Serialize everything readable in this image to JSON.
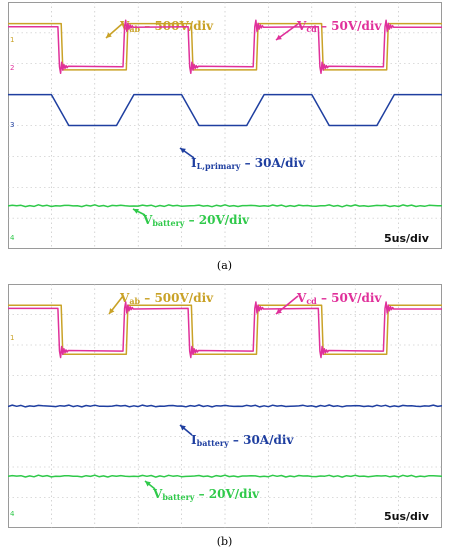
{
  "colors": {
    "vab": "#c9a227",
    "vcd": "#e0309a",
    "current": "#1f3fa0",
    "battery": "#2fc94a",
    "grid": "#b8b8b8",
    "scale_text": "#111111"
  },
  "chart_data": [
    {
      "type": "line",
      "panel_caption": "(a)",
      "time_scale": "5us/div",
      "grid": true,
      "channel_markers": [
        "1",
        "2",
        "3",
        "4"
      ],
      "period_us": 12,
      "x_range_us": [
        0,
        40
      ],
      "series": [
        {
          "name_main": "V",
          "name_sub": "ab",
          "scale": " – 500V/div",
          "waveform": "square",
          "high_div": 7.3,
          "low_div": 5.8
        },
        {
          "name_main": "V",
          "name_sub": "cd",
          "scale": " – 50V/div",
          "waveform": "square",
          "high_div": 7.2,
          "low_div": 5.9
        },
        {
          "name_main": "I",
          "name_sub": "L,primary",
          "scale": " – 30A/div",
          "waveform": "trapezoid",
          "high_div": 5.0,
          "low_div": 4.0
        },
        {
          "name_main": "V",
          "name_sub": "battery",
          "scale": " –  20V/div",
          "waveform": "dc",
          "level_div": 1.4
        }
      ]
    },
    {
      "type": "line",
      "panel_caption": "(b)",
      "time_scale": "5us/div",
      "grid": true,
      "channel_markers": [
        "1",
        "4"
      ],
      "period_us": 12,
      "x_range_us": [
        0,
        40
      ],
      "series": [
        {
          "name_main": "V",
          "name_sub": "ab",
          "scale": " – 500V/div",
          "waveform": "square",
          "high_div": 7.3,
          "low_div": 5.7
        },
        {
          "name_main": "V",
          "name_sub": "cd",
          "scale": " – 50V/div",
          "waveform": "square",
          "high_div": 7.2,
          "low_div": 5.8
        },
        {
          "name_main": "I",
          "name_sub": "battery",
          "scale": " – 30A/div",
          "waveform": "dc",
          "level_div": 4.0
        },
        {
          "name_main": "V",
          "name_sub": "battery",
          "scale": " –  20V/div",
          "waveform": "dc",
          "level_div": 1.7
        }
      ]
    }
  ]
}
